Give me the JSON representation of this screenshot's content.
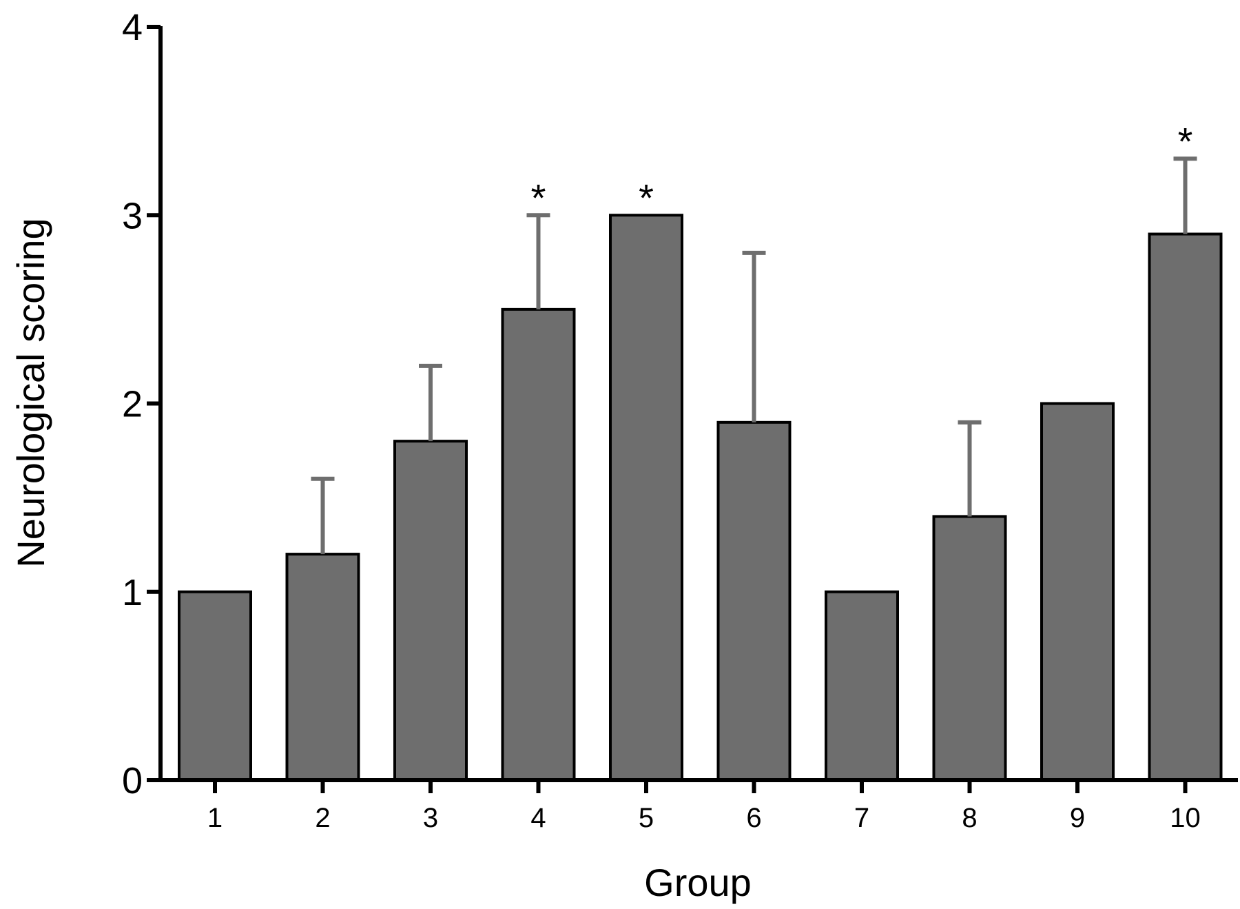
{
  "chart_data": {
    "type": "bar",
    "title": "",
    "xlabel": "Group",
    "ylabel": "Neurological scoring",
    "categories": [
      "1",
      "2",
      "3",
      "4",
      "5",
      "6",
      "7",
      "8",
      "9",
      "10"
    ],
    "values": [
      1.0,
      1.2,
      1.8,
      2.5,
      3.0,
      1.9,
      1.0,
      1.4,
      2.0,
      2.9
    ],
    "error_upper": [
      0.0,
      0.4,
      0.4,
      0.5,
      0.0,
      0.9,
      0.0,
      0.5,
      0.0,
      0.4
    ],
    "annotations": [
      "",
      "",
      "",
      "*",
      "*",
      "",
      "",
      "",
      "",
      "*"
    ],
    "ylim": [
      0,
      4
    ],
    "yticks": [
      "0",
      "1",
      "2",
      "3",
      "4"
    ],
    "grid": false,
    "colors": {
      "bar_fill": "#6e6e6e",
      "bar_stroke": "#000000",
      "error_bar": "#6e6e6e",
      "axis": "#000000"
    }
  }
}
